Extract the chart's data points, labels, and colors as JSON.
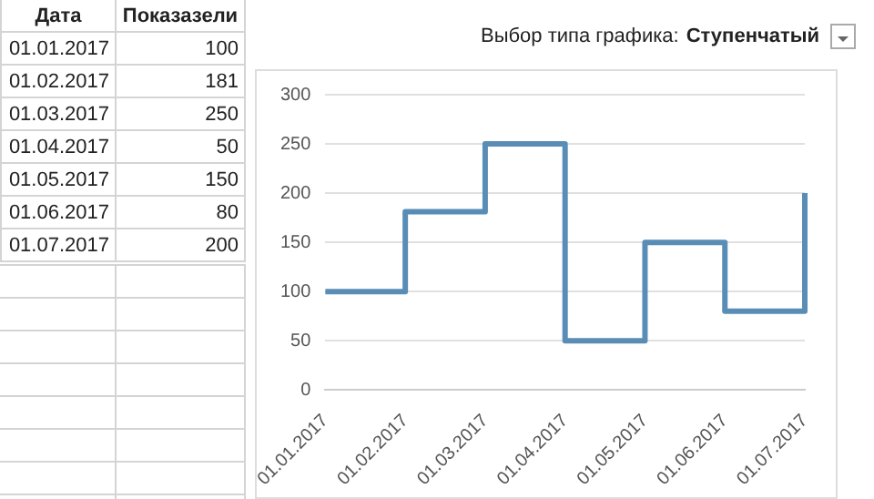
{
  "chart_data": {
    "type": "step",
    "categories": [
      "01.01.2017",
      "01.02.2017",
      "01.03.2017",
      "01.04.2017",
      "01.05.2017",
      "01.06.2017",
      "01.07.2017"
    ],
    "values": [
      100,
      181,
      250,
      50,
      150,
      80,
      200
    ],
    "color": "#5a8db5",
    "ylim": [
      0,
      300
    ],
    "yticks": [
      0,
      50,
      100,
      150,
      200,
      250,
      300
    ],
    "grid": "y",
    "legend": false,
    "marker": "none",
    "annotations": [
      "Дата",
      "Показазели",
      "100",
      "181",
      "250",
      "50",
      "150",
      "80",
      "200",
      "Выбор типа графика:",
      "Ступенчатый"
    ]
  }
}
